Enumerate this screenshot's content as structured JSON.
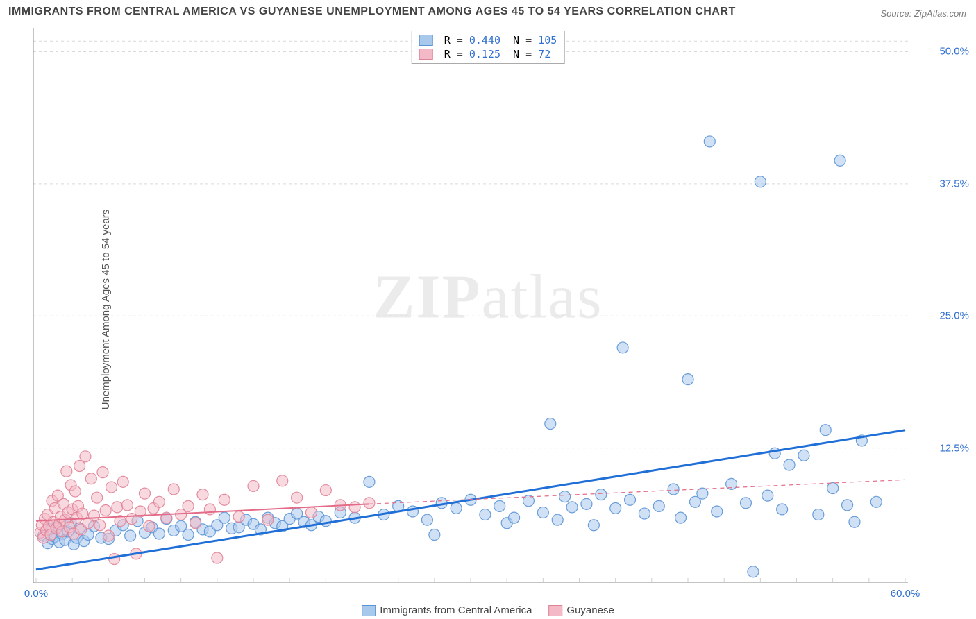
{
  "title": "IMMIGRANTS FROM CENTRAL AMERICA VS GUYANESE UNEMPLOYMENT AMONG AGES 45 TO 54 YEARS CORRELATION CHART",
  "source": "Source: ZipAtlas.com",
  "y_label": "Unemployment Among Ages 45 to 54 years",
  "watermark_a": "ZIP",
  "watermark_b": "atlas",
  "chart": {
    "type": "scatter",
    "xlim": [
      0,
      60
    ],
    "ylim": [
      0,
      52
    ],
    "x_ticks": [
      {
        "v": 0,
        "label": "0.0%"
      },
      {
        "v": 60,
        "label": "60.0%"
      }
    ],
    "y_ticks": [
      {
        "v": 12.5,
        "label": "12.5%"
      },
      {
        "v": 25.0,
        "label": "25.0%"
      },
      {
        "v": 37.5,
        "label": "37.5%"
      },
      {
        "v": 50.0,
        "label": "50.0%"
      }
    ],
    "grid_color": "#d9d9d9",
    "background_color": "#ffffff",
    "axis_color": "#888888",
    "tick_label_color": "#2f6fd0",
    "marker_radius": 8,
    "marker_opacity": 0.55,
    "marker_stroke_opacity": 0.9,
    "series": [
      {
        "name": "Immigrants from Central America",
        "color_fill": "#a9c9ec",
        "color_stroke": "#5a93d6",
        "trend_color": "#1f6fd6",
        "trend_width": 3,
        "trend_dash": "",
        "trend": {
          "x1": 0,
          "y1": 1.0,
          "x2": 60,
          "y2": 14.2
        },
        "extrap": null,
        "R": "0.440",
        "N": "105",
        "points": [
          [
            0.5,
            4.2
          ],
          [
            0.8,
            3.5
          ],
          [
            1.0,
            4.8
          ],
          [
            1.1,
            3.9
          ],
          [
            1.3,
            4.1
          ],
          [
            1.4,
            5.0
          ],
          [
            1.6,
            3.6
          ],
          [
            1.8,
            4.4
          ],
          [
            2.0,
            3.8
          ],
          [
            2.2,
            4.6
          ],
          [
            2.4,
            5.4
          ],
          [
            2.6,
            3.4
          ],
          [
            2.8,
            4.0
          ],
          [
            3.0,
            4.9
          ],
          [
            3.3,
            3.7
          ],
          [
            3.6,
            4.3
          ],
          [
            4.0,
            5.1
          ],
          [
            4.5,
            4.0
          ],
          [
            5.0,
            3.9
          ],
          [
            5.5,
            4.7
          ],
          [
            6.0,
            5.2
          ],
          [
            6.5,
            4.2
          ],
          [
            7.0,
            5.6
          ],
          [
            7.5,
            4.5
          ],
          [
            8.0,
            5.0
          ],
          [
            8.5,
            4.4
          ],
          [
            9.0,
            5.8
          ],
          [
            9.5,
            4.7
          ],
          [
            10.0,
            5.1
          ],
          [
            10.5,
            4.3
          ],
          [
            11.0,
            5.5
          ],
          [
            11.5,
            4.8
          ],
          [
            12.0,
            4.6
          ],
          [
            12.5,
            5.2
          ],
          [
            13.0,
            5.9
          ],
          [
            13.5,
            4.9
          ],
          [
            14.0,
            5.0
          ],
          [
            14.5,
            5.7
          ],
          [
            15.0,
            5.3
          ],
          [
            15.5,
            4.8
          ],
          [
            16.0,
            5.9
          ],
          [
            16.5,
            5.4
          ],
          [
            17.0,
            5.1
          ],
          [
            17.5,
            5.8
          ],
          [
            18.0,
            6.3
          ],
          [
            18.5,
            5.5
          ],
          [
            19.0,
            5.2
          ],
          [
            19.5,
            6.0
          ],
          [
            20.0,
            5.6
          ],
          [
            21.0,
            6.4
          ],
          [
            22.0,
            5.9
          ],
          [
            23.0,
            9.3
          ],
          [
            24.0,
            6.2
          ],
          [
            25.0,
            7.0
          ],
          [
            26.0,
            6.5
          ],
          [
            27.0,
            5.7
          ],
          [
            27.5,
            4.3
          ],
          [
            28.0,
            7.3
          ],
          [
            29.0,
            6.8
          ],
          [
            30.0,
            7.6
          ],
          [
            31.0,
            6.2
          ],
          [
            32.0,
            7.0
          ],
          [
            32.5,
            5.4
          ],
          [
            33.0,
            5.9
          ],
          [
            34.0,
            7.5
          ],
          [
            35.0,
            6.4
          ],
          [
            35.5,
            14.8
          ],
          [
            36.0,
            5.7
          ],
          [
            36.5,
            7.9
          ],
          [
            37.0,
            6.9
          ],
          [
            38.0,
            7.2
          ],
          [
            38.5,
            5.2
          ],
          [
            39.0,
            8.1
          ],
          [
            40.0,
            6.8
          ],
          [
            40.5,
            22.0
          ],
          [
            41.0,
            7.6
          ],
          [
            42.0,
            6.3
          ],
          [
            43.0,
            7.0
          ],
          [
            44.0,
            8.6
          ],
          [
            44.5,
            5.9
          ],
          [
            45.0,
            19.0
          ],
          [
            45.5,
            7.4
          ],
          [
            46.0,
            8.2
          ],
          [
            46.5,
            41.5
          ],
          [
            47.0,
            6.5
          ],
          [
            48.0,
            9.1
          ],
          [
            49.0,
            7.3
          ],
          [
            49.5,
            0.8
          ],
          [
            50.0,
            37.7
          ],
          [
            50.5,
            8.0
          ],
          [
            51.0,
            12.0
          ],
          [
            51.5,
            6.7
          ],
          [
            52.0,
            10.9
          ],
          [
            53.0,
            11.8
          ],
          [
            54.0,
            6.2
          ],
          [
            54.5,
            14.2
          ],
          [
            55.0,
            8.7
          ],
          [
            55.5,
            39.7
          ],
          [
            56.0,
            7.1
          ],
          [
            56.5,
            5.5
          ],
          [
            57.0,
            13.2
          ],
          [
            58.0,
            7.4
          ]
        ]
      },
      {
        "name": "Guyanese",
        "color_fill": "#f4b9c6",
        "color_stroke": "#e08296",
        "trend_color": "#e36b88",
        "trend_width": 2,
        "trend_dash": "",
        "trend": {
          "x1": 0,
          "y1": 5.6,
          "x2": 23,
          "y2": 7.2
        },
        "extrap": {
          "x1": 23,
          "y1": 7.2,
          "x2": 60,
          "y2": 9.5,
          "dash": "6 5",
          "width": 1.2
        },
        "R": "0.125",
        "N": "72",
        "points": [
          [
            0.3,
            4.5
          ],
          [
            0.4,
            5.2
          ],
          [
            0.5,
            4.0
          ],
          [
            0.6,
            5.8
          ],
          [
            0.7,
            4.7
          ],
          [
            0.8,
            6.2
          ],
          [
            0.9,
            5.1
          ],
          [
            1.0,
            4.3
          ],
          [
            1.1,
            7.5
          ],
          [
            1.2,
            5.5
          ],
          [
            1.3,
            6.8
          ],
          [
            1.4,
            4.9
          ],
          [
            1.5,
            8.0
          ],
          [
            1.6,
            5.3
          ],
          [
            1.7,
            6.0
          ],
          [
            1.8,
            4.6
          ],
          [
            1.9,
            7.2
          ],
          [
            2.0,
            5.7
          ],
          [
            2.1,
            10.3
          ],
          [
            2.2,
            6.4
          ],
          [
            2.3,
            5.0
          ],
          [
            2.4,
            9.0
          ],
          [
            2.5,
            6.7
          ],
          [
            2.6,
            4.4
          ],
          [
            2.7,
            8.4
          ],
          [
            2.8,
            5.9
          ],
          [
            2.9,
            7.0
          ],
          [
            3.0,
            10.8
          ],
          [
            3.1,
            4.8
          ],
          [
            3.2,
            6.3
          ],
          [
            3.4,
            11.7
          ],
          [
            3.6,
            5.4
          ],
          [
            3.8,
            9.6
          ],
          [
            4.0,
            6.1
          ],
          [
            4.2,
            7.8
          ],
          [
            4.4,
            5.2
          ],
          [
            4.6,
            10.2
          ],
          [
            4.8,
            6.6
          ],
          [
            5.0,
            4.2
          ],
          [
            5.2,
            8.8
          ],
          [
            5.4,
            2.0
          ],
          [
            5.6,
            6.9
          ],
          [
            5.8,
            5.6
          ],
          [
            6.0,
            9.3
          ],
          [
            6.3,
            7.1
          ],
          [
            6.6,
            5.8
          ],
          [
            6.9,
            2.5
          ],
          [
            7.2,
            6.5
          ],
          [
            7.5,
            8.2
          ],
          [
            7.8,
            5.1
          ],
          [
            8.1,
            6.8
          ],
          [
            8.5,
            7.4
          ],
          [
            9.0,
            5.9
          ],
          [
            9.5,
            8.6
          ],
          [
            10.0,
            6.2
          ],
          [
            10.5,
            7.0
          ],
          [
            11.0,
            5.4
          ],
          [
            11.5,
            8.1
          ],
          [
            12.0,
            6.7
          ],
          [
            12.5,
            2.1
          ],
          [
            13.0,
            7.6
          ],
          [
            14.0,
            6.0
          ],
          [
            15.0,
            8.9
          ],
          [
            16.0,
            5.7
          ],
          [
            17.0,
            9.4
          ],
          [
            18.0,
            7.8
          ],
          [
            19.0,
            6.4
          ],
          [
            20.0,
            8.5
          ],
          [
            21.0,
            7.1
          ],
          [
            22.0,
            6.9
          ],
          [
            23.0,
            7.3
          ]
        ]
      }
    ]
  },
  "bottom_legend": [
    {
      "label": "Immigrants from Central America",
      "fill": "#a9c9ec",
      "stroke": "#5a93d6"
    },
    {
      "label": "Guyanese",
      "fill": "#f4b9c6",
      "stroke": "#e08296"
    }
  ]
}
